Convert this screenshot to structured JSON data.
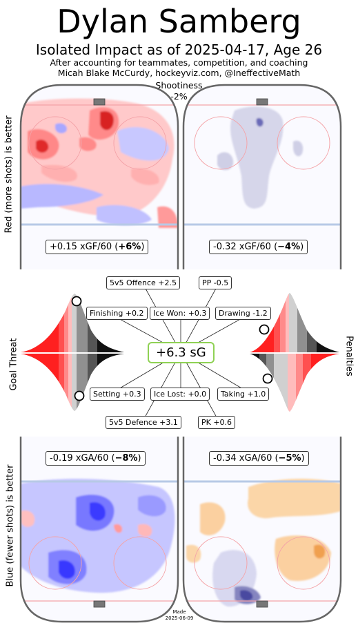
{
  "header": {
    "title": "Dylan Samberg",
    "subtitle": "Isolated Impact as of 2025-04-17, Age 26",
    "credit_line1": "After accounting for teammates, competition, and coaching",
    "credit_line2": "Micah Blake McCurdy, hockeyviz.com, @IneffectiveMath",
    "shootiness_label": "Shootiness",
    "shootiness_value": "-2%"
  },
  "side_labels": {
    "top_left": "Red (more shots) is better",
    "bottom_left": "Blue (fewer shots) is better",
    "middle_left": "Goal Threat",
    "middle_right": "Penalties"
  },
  "rink_boxes": {
    "offence_5v5": {
      "prefix": "+0.15 xGF/60 (",
      "bold": "+6%",
      "suffix": ")"
    },
    "offence_pp": {
      "prefix": "-0.32 xGF/60 (",
      "bold": "−4%",
      "suffix": ")"
    },
    "defence_5v5": {
      "prefix": "-0.19 xGA/60 (",
      "bold": "−8%",
      "suffix": ")"
    },
    "defence_pk": {
      "prefix": "-0.34 xGA/60 (",
      "bold": "−5%",
      "suffix": ")"
    }
  },
  "components": {
    "center": "+6.3 sG",
    "offence_5v5": "5v5 Offence +2.5",
    "pp": "PP -0.5",
    "finishing": "Finishing +0.2",
    "ice_won": "Ice Won: +0.3",
    "drawing": "Drawing -1.2",
    "setting": "Setting +0.3",
    "ice_lost": "Ice Lost: +0.0",
    "taking": "Taking +1.0",
    "defence_5v5": "5v5 Defence +3.1",
    "pk": "PK +0.6"
  },
  "colors": {
    "rink_border": "#666666",
    "red_line": "#f4a3a8",
    "blue_line": "#b7c9e6",
    "box_green": "#8fd154",
    "more_shots": "#ff4040",
    "fewer_shots": "#4040ff",
    "pk_fewer": "#f7b56b"
  },
  "chart_data": {
    "type": "distribution",
    "total_sG": 6.3,
    "shootiness_pct": -2,
    "offence_5v5": {
      "xGF60": 0.15,
      "pct": 6
    },
    "pp": {
      "xGF60": -0.32,
      "pct": -4
    },
    "defence_5v5": {
      "xGA60": -0.19,
      "pct": -8
    },
    "pk": {
      "xGA60": -0.34,
      "pct": -5
    },
    "goal_threat": {
      "finishing": 0.2,
      "setting": 0.3,
      "finishing_percentile": 0.32,
      "setting_percentile": 0.72
    },
    "penalties": {
      "drawing": -1.2,
      "taking": 1.0,
      "drawing_percentile": 0.25,
      "taking_percentile": 0.88
    },
    "ice_won": 0.3,
    "ice_lost": 0.0
  },
  "footer": {
    "made_label": "Made",
    "made_date": "2025-06-09"
  }
}
